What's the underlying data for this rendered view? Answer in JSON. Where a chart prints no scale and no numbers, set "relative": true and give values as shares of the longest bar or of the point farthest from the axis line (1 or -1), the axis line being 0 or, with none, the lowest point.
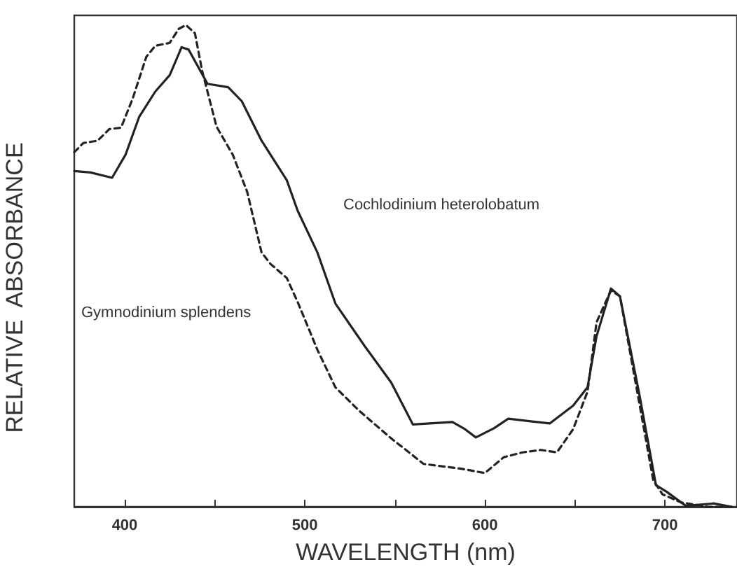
{
  "chart_data": {
    "type": "line",
    "relative": true,
    "xlabel": "WAVELENGTH (nm)",
    "ylabel": "RELATIVE  ABSORBANCE",
    "xlim": [
      372,
      740
    ],
    "xticks": [
      400,
      {
        "value": 450,
        "label": null
      },
      500,
      {
        "value": 550,
        "label": null
      },
      600,
      {
        "value": 650,
        "label": null
      },
      700
    ],
    "grid": false,
    "legend": false,
    "marker": "none",
    "series": [
      {
        "name": "Cochlodinium heterolobatum",
        "color": "#222222",
        "line_style": "solid",
        "x": [
          372,
          381,
          393,
          400.5,
          408,
          417,
          425,
          431.6,
          435.5,
          446,
          457.5,
          465,
          476,
          490,
          496,
          507,
          517,
          533,
          548,
          560,
          582,
          589,
          595,
          605,
          613,
          636,
          649,
          657,
          662,
          670,
          675,
          686,
          695,
          701,
          711.6,
          727,
          737
        ],
        "values": [
          0.697,
          0.694,
          0.683,
          0.731,
          0.809,
          0.862,
          0.896,
          0.954,
          0.949,
          0.878,
          0.871,
          0.842,
          0.76,
          0.678,
          0.615,
          0.528,
          0.422,
          0.335,
          0.258,
          0.171,
          0.176,
          0.161,
          0.144,
          0.163,
          0.183,
          0.173,
          0.21,
          0.248,
          0.354,
          0.453,
          0.437,
          0.229,
          0.045,
          0.031,
          0.002,
          0.007,
          0
        ]
      },
      {
        "name": "Gymnodinium splendens",
        "color": "#222222",
        "line_style": "dashed",
        "x": [
          372,
          377,
          385,
          391.5,
          398,
          404.4,
          412,
          417,
          425,
          430,
          434,
          439,
          443,
          451,
          460,
          468,
          476,
          481,
          490,
          496.4,
          507,
          517,
          530,
          548,
          566,
          587,
          600,
          610.5,
          621,
          631,
          640,
          649,
          657,
          662,
          670,
          675,
          686,
          693.5,
          698.6,
          709,
          724,
          737
        ],
        "values": [
          0.736,
          0.755,
          0.76,
          0.784,
          0.787,
          0.847,
          0.934,
          0.957,
          0.963,
          0.992,
          1,
          0.983,
          0.905,
          0.789,
          0.731,
          0.654,
          0.528,
          0.504,
          0.475,
          0.422,
          0.326,
          0.248,
          0.2,
          0.142,
          0.089,
          0.079,
          0.07,
          0.103,
          0.113,
          0.118,
          0.113,
          0.161,
          0.239,
          0.383,
          0.449,
          0.437,
          0.21,
          0.055,
          0.026,
          0.009,
          0,
          0
        ]
      }
    ]
  }
}
